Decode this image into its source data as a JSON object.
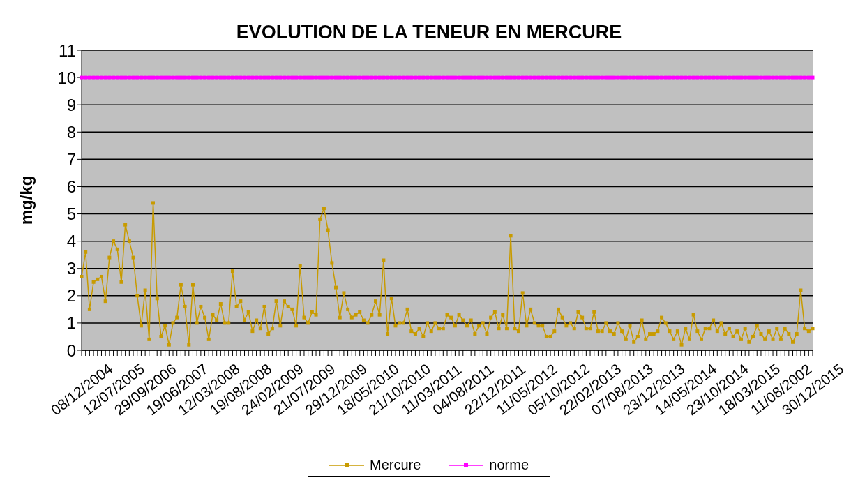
{
  "chart_data": {
    "type": "line",
    "title": "EVOLUTION DE LA TENEUR EN MERCURE",
    "ylabel": "mg/kg",
    "categories": [
      "08/12/2004",
      null,
      null,
      null,
      null,
      null,
      null,
      null,
      "12/07/2005",
      null,
      null,
      null,
      null,
      null,
      null,
      null,
      "29/09/2006",
      null,
      null,
      null,
      null,
      null,
      null,
      null,
      "19/06/2007",
      null,
      null,
      null,
      null,
      null,
      null,
      null,
      "12/03/2008",
      null,
      null,
      null,
      null,
      null,
      null,
      null,
      "19/08/2008",
      null,
      null,
      null,
      null,
      null,
      null,
      null,
      "24/02/2009",
      null,
      null,
      null,
      null,
      null,
      null,
      null,
      "21/07/2009",
      null,
      null,
      null,
      null,
      null,
      null,
      null,
      "29/12/2009",
      null,
      null,
      null,
      null,
      null,
      null,
      null,
      "18/05/2010",
      null,
      null,
      null,
      null,
      null,
      null,
      null,
      "21/10/2010",
      null,
      null,
      null,
      null,
      null,
      null,
      null,
      "11/03/2011",
      null,
      null,
      null,
      null,
      null,
      null,
      null,
      "04/08/2011",
      null,
      null,
      null,
      null,
      null,
      null,
      null,
      "22/12/2011",
      null,
      null,
      null,
      null,
      null,
      null,
      null,
      "11/05/2012",
      null,
      null,
      null,
      null,
      null,
      null,
      null,
      "05/10/2012",
      null,
      null,
      null,
      null,
      null,
      null,
      null,
      "22/02/2013",
      null,
      null,
      null,
      null,
      null,
      null,
      null,
      "07/08/2013",
      null,
      null,
      null,
      null,
      null,
      null,
      null,
      "23/12/2013",
      null,
      null,
      null,
      null,
      null,
      null,
      null,
      "14/05/2014",
      null,
      null,
      null,
      null,
      null,
      null,
      null,
      "23/10/2014",
      null,
      null,
      null,
      null,
      null,
      null,
      null,
      "18/03/2015",
      null,
      null,
      null,
      null,
      null,
      null,
      null,
      "11/08/2002",
      null,
      null,
      null,
      null,
      null,
      null,
      null,
      "30/12/2015"
    ],
    "series": [
      {
        "name": "Mercure",
        "color": "#c89b00",
        "values": [
          2.7,
          3.6,
          1.5,
          2.5,
          2.6,
          2.7,
          1.8,
          3.4,
          4.0,
          3.7,
          2.5,
          4.6,
          4.0,
          3.4,
          2.0,
          0.9,
          2.2,
          0.4,
          5.4,
          1.9,
          0.5,
          0.9,
          0.2,
          1.0,
          1.2,
          2.4,
          1.6,
          0.2,
          2.4,
          1.0,
          1.6,
          1.2,
          0.4,
          1.3,
          1.1,
          1.7,
          1.0,
          1.0,
          2.9,
          1.6,
          1.8,
          1.1,
          1.4,
          0.7,
          1.1,
          0.8,
          1.6,
          0.6,
          0.8,
          1.8,
          0.9,
          1.8,
          1.6,
          1.5,
          0.9,
          3.1,
          1.2,
          1.0,
          1.4,
          1.3,
          4.8,
          5.2,
          4.4,
          3.2,
          2.3,
          1.2,
          2.1,
          1.5,
          1.2,
          1.3,
          1.4,
          1.1,
          1.0,
          1.3,
          1.8,
          1.3,
          3.3,
          0.6,
          1.9,
          0.9,
          1.0,
          1.0,
          1.5,
          0.7,
          0.6,
          0.8,
          0.5,
          1.0,
          0.7,
          1.0,
          0.8,
          0.8,
          1.3,
          1.2,
          0.9,
          1.3,
          1.1,
          0.9,
          1.1,
          0.6,
          0.9,
          1.0,
          0.6,
          1.2,
          1.4,
          0.8,
          1.3,
          0.8,
          4.2,
          0.8,
          0.7,
          2.1,
          0.9,
          1.5,
          1.0,
          0.9,
          0.9,
          0.5,
          0.5,
          0.7,
          1.5,
          1.2,
          0.9,
          1.0,
          0.8,
          1.4,
          1.2,
          0.8,
          0.8,
          1.4,
          0.7,
          0.7,
          1.0,
          0.7,
          0.6,
          1.0,
          0.7,
          0.4,
          0.9,
          0.3,
          0.5,
          1.1,
          0.4,
          0.6,
          0.6,
          0.7,
          1.2,
          1.0,
          0.7,
          0.4,
          0.7,
          0.2,
          0.8,
          0.4,
          1.3,
          0.7,
          0.4,
          0.8,
          0.8,
          1.1,
          0.7,
          1.0,
          0.6,
          0.8,
          0.5,
          0.7,
          0.4,
          0.8,
          0.3,
          0.5,
          0.9,
          0.6,
          0.4,
          0.7,
          0.4,
          0.8,
          0.4,
          0.8,
          0.6,
          0.3,
          0.6,
          2.2,
          0.8,
          0.7,
          0.8
        ]
      },
      {
        "name": "norme",
        "color": "#ff00ff",
        "values": [
          10,
          10,
          10,
          10,
          10,
          10,
          10,
          10,
          10,
          10,
          10,
          10,
          10,
          10,
          10,
          10,
          10,
          10,
          10,
          10,
          10,
          10,
          10,
          10,
          10,
          10,
          10,
          10,
          10,
          10,
          10,
          10,
          10,
          10,
          10,
          10,
          10,
          10,
          10,
          10,
          10,
          10,
          10,
          10,
          10,
          10,
          10,
          10,
          10,
          10,
          10,
          10,
          10,
          10,
          10,
          10,
          10,
          10,
          10,
          10,
          10,
          10,
          10,
          10,
          10,
          10,
          10,
          10,
          10,
          10,
          10,
          10,
          10,
          10,
          10,
          10,
          10,
          10,
          10,
          10,
          10,
          10,
          10,
          10,
          10,
          10,
          10,
          10,
          10,
          10,
          10,
          10,
          10,
          10,
          10,
          10,
          10,
          10,
          10,
          10,
          10,
          10,
          10,
          10,
          10,
          10,
          10,
          10,
          10,
          10,
          10,
          10,
          10,
          10,
          10,
          10,
          10,
          10,
          10,
          10,
          10,
          10,
          10,
          10,
          10,
          10,
          10,
          10,
          10,
          10,
          10,
          10,
          10,
          10,
          10,
          10,
          10,
          10,
          10,
          10,
          10,
          10,
          10,
          10,
          10,
          10,
          10,
          10,
          10,
          10,
          10,
          10,
          10,
          10,
          10,
          10,
          10,
          10,
          10,
          10,
          10,
          10,
          10,
          10,
          10,
          10,
          10,
          10,
          10,
          10,
          10,
          10,
          10,
          10,
          10,
          10,
          10,
          10,
          10,
          10,
          10,
          10,
          10,
          10,
          10
        ]
      }
    ],
    "ylim": [
      0,
      11
    ],
    "yticks": [
      0,
      1,
      2,
      3,
      4,
      5,
      6,
      7,
      8,
      9,
      10,
      11
    ],
    "grid": "y",
    "legend": "bottom",
    "marker": "square"
  }
}
